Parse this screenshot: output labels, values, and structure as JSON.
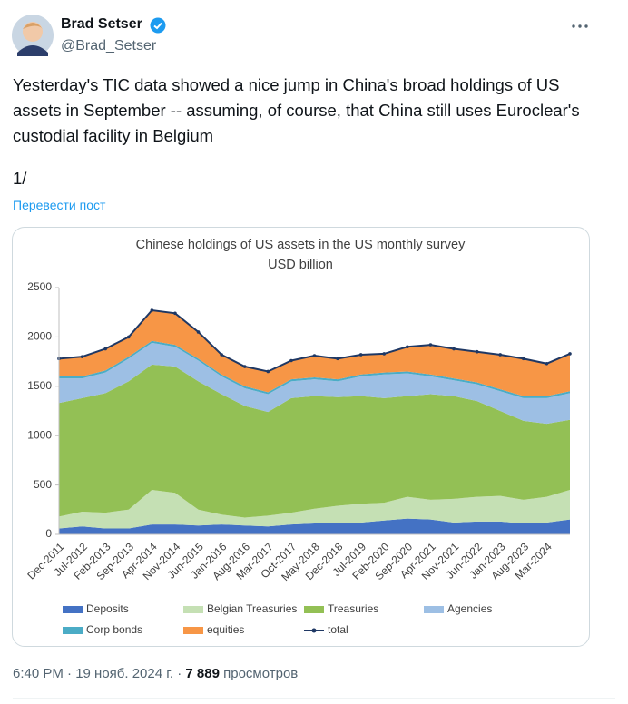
{
  "author": {
    "name": "Brad Setser",
    "handle": "@Brad_Setser"
  },
  "text": "Yesterday's TIC data showed a nice jump in China's broad holdings of US assets in September -- assuming, of course, that China still uses Euroclear's custodial facility in Belgium",
  "thread_marker": "1/",
  "translate": "Перевести пост",
  "footer": {
    "time": "6:40 PM · 19 нояб. 2024 г. ·",
    "views": "7 889",
    "views_label": "просмотров"
  },
  "chart_data": {
    "type": "stacked-area",
    "title": "Chinese holdings of US assets in the US monthly survey",
    "subtitle": "USD billion",
    "categories": [
      "Dec-2011",
      "Jul-2012",
      "Feb-2013",
      "Sep-2013",
      "Apr-2014",
      "Nov-2014",
      "Jun-2015",
      "Jan-2016",
      "Aug-2016",
      "Mar-2017",
      "Oct-2017",
      "May-2018",
      "Dec-2018",
      "Jul-2019",
      "Feb-2020",
      "Sep-2020",
      "Apr-2021",
      "Nov-2021",
      "Jun-2022",
      "Jan-2023",
      "Aug-2023",
      "Mar-2024",
      null
    ],
    "series": [
      {
        "name": "Deposits",
        "color": "#4472c4",
        "values": [
          60,
          80,
          60,
          60,
          100,
          100,
          90,
          100,
          90,
          80,
          100,
          110,
          120,
          120,
          140,
          160,
          150,
          120,
          130,
          130,
          110,
          120,
          150
        ]
      },
      {
        "name": "Belgian Treasuries",
        "color": "#c5e0b4",
        "values": [
          120,
          150,
          160,
          190,
          350,
          320,
          160,
          100,
          80,
          110,
          120,
          150,
          170,
          190,
          180,
          220,
          200,
          240,
          250,
          260,
          240,
          260,
          300
        ]
      },
      {
        "name": "Treasuries",
        "color": "#93c055",
        "values": [
          1150,
          1150,
          1210,
          1300,
          1270,
          1280,
          1300,
          1220,
          1130,
          1050,
          1160,
          1140,
          1100,
          1090,
          1060,
          1020,
          1070,
          1040,
          970,
          860,
          800,
          740,
          710
        ]
      },
      {
        "name": "Agencies",
        "color": "#9dbfe4",
        "values": [
          250,
          200,
          210,
          230,
          220,
          200,
          210,
          180,
          180,
          180,
          170,
          170,
          160,
          200,
          240,
          230,
          180,
          160,
          170,
          200,
          230,
          260,
          270
        ]
      },
      {
        "name": "Corp bonds",
        "color": "#4bacc6",
        "values": [
          20,
          20,
          20,
          20,
          20,
          20,
          20,
          20,
          20,
          20,
          20,
          20,
          20,
          20,
          20,
          20,
          20,
          20,
          20,
          20,
          20,
          20,
          20
        ]
      },
      {
        "name": "equities",
        "color": "#f79646",
        "values": [
          180,
          200,
          220,
          200,
          310,
          320,
          270,
          200,
          200,
          210,
          190,
          220,
          210,
          200,
          190,
          250,
          300,
          300,
          310,
          350,
          380,
          330,
          380
        ]
      }
    ],
    "total": {
      "name": "total",
      "color": "#1f3864",
      "values": [
        1780,
        1800,
        1880,
        2000,
        2270,
        2240,
        2050,
        1820,
        1700,
        1650,
        1760,
        1810,
        1780,
        1820,
        1830,
        1900,
        1920,
        1880,
        1850,
        1820,
        1780,
        1730,
        1830
      ]
    },
    "ylim": [
      0,
      2500
    ],
    "yticks": [
      0,
      500,
      1000,
      1500,
      2000,
      2500
    ],
    "grid": false
  }
}
